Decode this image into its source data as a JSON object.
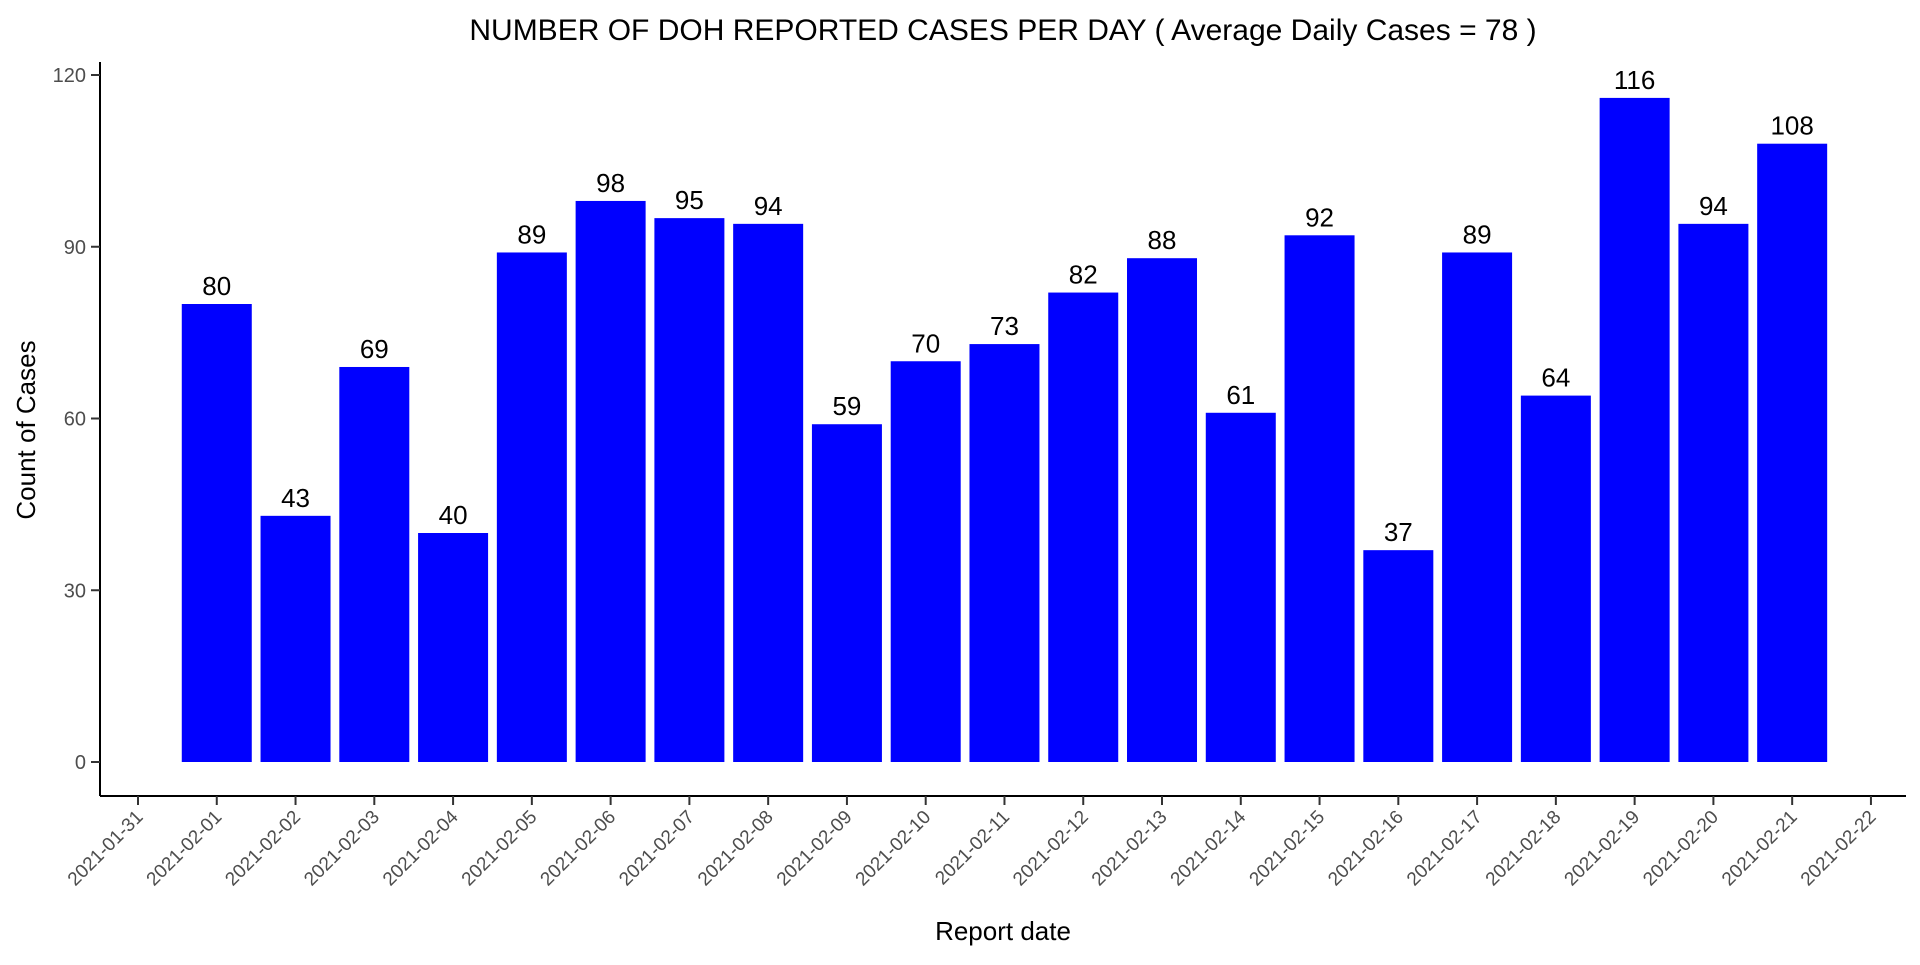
{
  "chart_data": {
    "type": "bar",
    "title": "NUMBER OF DOH REPORTED CASES PER DAY ( Average Daily Cases = 78 )",
    "xlabel": "Report date",
    "ylabel": "Count of Cases",
    "x_ticks": [
      "2021-01-31",
      "2021-02-01",
      "2021-02-02",
      "2021-02-03",
      "2021-02-04",
      "2021-02-05",
      "2021-02-06",
      "2021-02-07",
      "2021-02-08",
      "2021-02-09",
      "2021-02-10",
      "2021-02-11",
      "2021-02-12",
      "2021-02-13",
      "2021-02-14",
      "2021-02-15",
      "2021-02-16",
      "2021-02-17",
      "2021-02-18",
      "2021-02-19",
      "2021-02-20",
      "2021-02-21",
      "2021-02-22"
    ],
    "categories": [
      "2021-02-01",
      "2021-02-02",
      "2021-02-03",
      "2021-02-04",
      "2021-02-05",
      "2021-02-06",
      "2021-02-07",
      "2021-02-08",
      "2021-02-09",
      "2021-02-10",
      "2021-02-11",
      "2021-02-12",
      "2021-02-13",
      "2021-02-14",
      "2021-02-15",
      "2021-02-16",
      "2021-02-17",
      "2021-02-18",
      "2021-02-19",
      "2021-02-20",
      "2021-02-21"
    ],
    "values": [
      80,
      43,
      69,
      40,
      89,
      98,
      95,
      94,
      59,
      70,
      73,
      82,
      88,
      61,
      92,
      37,
      89,
      64,
      116,
      94,
      108
    ],
    "data_labels": [
      "80",
      "43",
      "69",
      "40",
      "89",
      "98",
      "95",
      "94",
      "59",
      "70",
      "73",
      "82",
      "88",
      "61",
      "92",
      "37",
      "89",
      "64",
      "116",
      "94",
      "108"
    ],
    "y_ticks": [
      0,
      30,
      60,
      90,
      120
    ],
    "y_tick_labels": [
      "0",
      "30",
      "60",
      "90",
      "120"
    ],
    "ylim": [
      0,
      120
    ],
    "xlim": [
      "2021-01-31",
      "2021-02-22"
    ],
    "grid": false,
    "legend": "none",
    "bar_color": "#0000ff"
  }
}
